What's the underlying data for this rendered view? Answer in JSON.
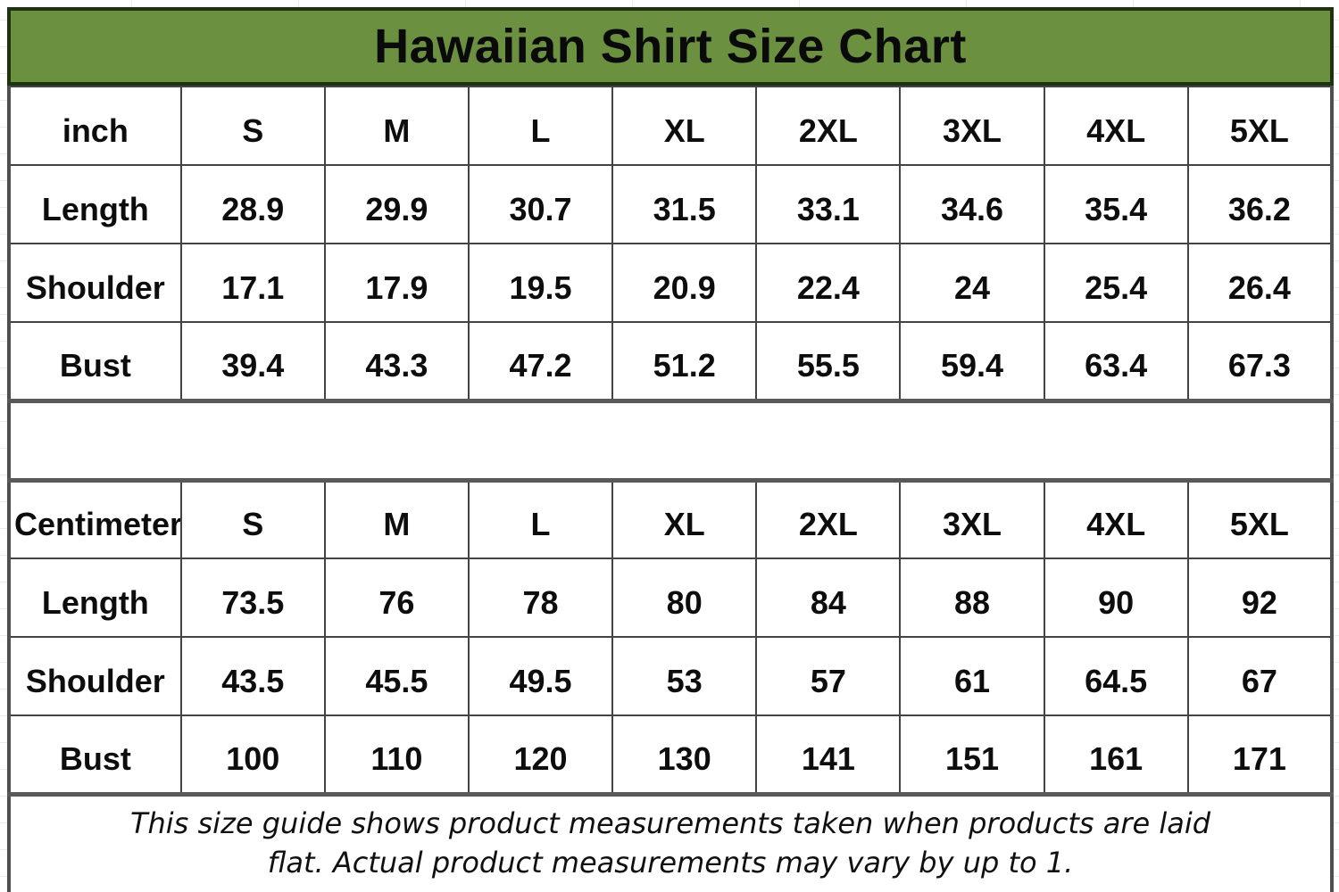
{
  "title": "Hawaiian Shirt Size Chart",
  "footer_note": "This size guide shows product measurements taken when products are laid flat. Actual product measurements may vary by up to 1.",
  "colors": {
    "title_bg": "#6A9040",
    "title_border": "#203311",
    "grid_border": "#434343",
    "thick_border": "#595959",
    "text": "#0D0D0D"
  },
  "chart_data": [
    {
      "type": "table",
      "unit_label": "inch",
      "columns": [
        "inch",
        "S",
        "M",
        "L",
        "XL",
        "2XL",
        "3XL",
        "4XL",
        "5XL"
      ],
      "rows": [
        {
          "label": "Length",
          "values": [
            "28.9",
            "29.9",
            "30.7",
            "31.5",
            "33.1",
            "34.6",
            "35.4",
            "36.2"
          ]
        },
        {
          "label": "Shoulder",
          "values": [
            "17.1",
            "17.9",
            "19.5",
            "20.9",
            "22.4",
            "24",
            "25.4",
            "26.4"
          ]
        },
        {
          "label": "Bust",
          "values": [
            "39.4",
            "43.3",
            "47.2",
            "51.2",
            "55.5",
            "59.4",
            "63.4",
            "67.3"
          ]
        }
      ]
    },
    {
      "type": "table",
      "unit_label": "Centimeter",
      "columns": [
        "Centimeter",
        "S",
        "M",
        "L",
        "XL",
        "2XL",
        "3XL",
        "4XL",
        "5XL"
      ],
      "rows": [
        {
          "label": "Length",
          "values": [
            "73.5",
            "76",
            "78",
            "80",
            "84",
            "88",
            "90",
            "92"
          ]
        },
        {
          "label": "Shoulder",
          "values": [
            "43.5",
            "45.5",
            "49.5",
            "53",
            "57",
            "61",
            "64.5",
            "67"
          ]
        },
        {
          "label": "Bust",
          "values": [
            "100",
            "110",
            "120",
            "130",
            "141",
            "151",
            "161",
            "171"
          ]
        }
      ]
    }
  ]
}
